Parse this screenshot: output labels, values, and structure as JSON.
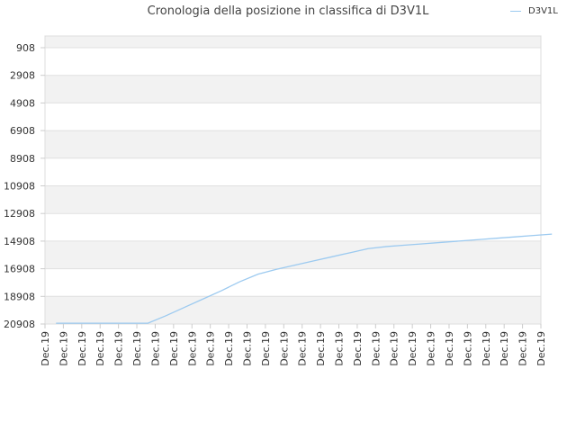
{
  "chart_data": {
    "type": "line",
    "title": "Cronologia della posizione in classifica di D3V1L",
    "xlabel": "",
    "ylabel": "",
    "y_reversed": true,
    "ylim": [
      20908,
      908
    ],
    "y_ticks": [
      908,
      2908,
      4908,
      6908,
      8908,
      10908,
      12908,
      14908,
      16908,
      18908,
      20908
    ],
    "y_tick_labels": [
      "908",
      "2908",
      "4908",
      "6908",
      "8908",
      "10908",
      "12908",
      "14908",
      "16908",
      "18908",
      "20908"
    ],
    "categories": [
      "Dec.19",
      "Dec.19",
      "Dec.19",
      "Dec.19",
      "Dec.19",
      "Dec.19",
      "Dec.19",
      "Dec.19",
      "Dec.19",
      "Dec.19",
      "Dec.19",
      "Dec.19",
      "Dec.19",
      "Dec.19",
      "Dec.19",
      "Dec.19",
      "Dec.19",
      "Dec.19",
      "Dec.19",
      "Dec.19",
      "Dec.19",
      "Dec.19",
      "Dec.19",
      "Dec.19",
      "Dec.19",
      "Dec.19",
      "Dec.19",
      "Dec.19"
    ],
    "series": [
      {
        "name": "D3V1L",
        "color": "#9ccaf0",
        "values": [
          20850,
          20850,
          20850,
          20850,
          20850,
          20850,
          20300,
          19700,
          19100,
          18500,
          17850,
          17300,
          16950,
          16650,
          16350,
          16050,
          15750,
          15450,
          15300,
          15200,
          15100,
          15000,
          14900,
          14800,
          14700,
          14600,
          14500,
          14400
        ]
      }
    ],
    "grid": true,
    "legend_position": "top-right"
  }
}
